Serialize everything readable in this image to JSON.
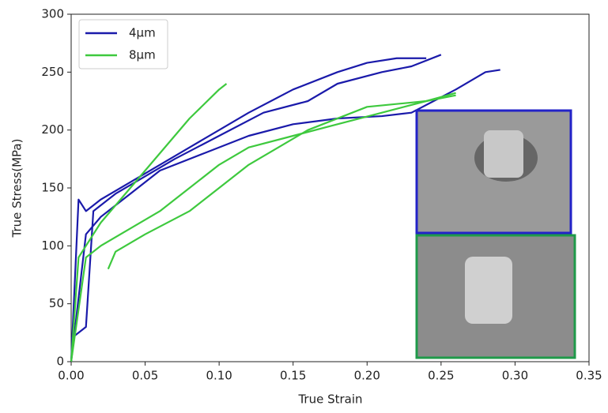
{
  "chart_data": {
    "type": "line",
    "xlabel": "True Strain",
    "ylabel": "True Stress(MPa)",
    "xlim": [
      0,
      0.35
    ],
    "ylim": [
      0,
      300
    ],
    "xticks": [
      {
        "value": 0,
        "label": "0.00"
      },
      0.05,
      {
        "value": 0.1,
        "label": "0.10"
      },
      0.15,
      {
        "value": 0.2,
        "label": "0.20"
      },
      0.25,
      {
        "value": 0.3,
        "label": "0.30"
      },
      0.35
    ],
    "yticks": [
      0,
      50,
      100,
      150,
      200,
      250,
      300
    ],
    "legend": "upper left",
    "series": [
      {
        "name": "4μm",
        "color": "#1a1aaa",
        "curves": [
          {
            "x": [
              0,
              0.005,
              0.01,
              0.02,
              0.04,
              0.06,
              0.08,
              0.1,
              0.12,
              0.15,
              0.18,
              0.2,
              0.22,
              0.24
            ],
            "values": [
              0,
              140,
              130,
              140,
              155,
              170,
              185,
              200,
              215,
              235,
              250,
              258,
              262,
              262
            ]
          },
          {
            "x": [
              0,
              0.01,
              0.015,
              0.03,
              0.05,
              0.07,
              0.1,
              0.13,
              0.16,
              0.18,
              0.21,
              0.23,
              0.25
            ],
            "values": [
              20,
              30,
              130,
              145,
              160,
              175,
              195,
              215,
              225,
              240,
              250,
              255,
              265
            ]
          },
          {
            "x": [
              0,
              0.01,
              0.02,
              0.04,
              0.06,
              0.09,
              0.12,
              0.15,
              0.18,
              0.21,
              0.23,
              0.26,
              0.28,
              0.29
            ],
            "values": [
              0,
              110,
              125,
              145,
              165,
              180,
              195,
              205,
              210,
              212,
              215,
              235,
              250,
              252
            ]
          }
        ]
      },
      {
        "name": "8μm",
        "color": "#3ec93e",
        "curves": [
          {
            "x": [
              0,
              0.005,
              0.01,
              0.02,
              0.04,
              0.06,
              0.08,
              0.1,
              0.105
            ],
            "values": [
              0,
              90,
              100,
              120,
              150,
              180,
              210,
              235,
              240
            ]
          },
          {
            "x": [
              0,
              0.01,
              0.02,
              0.04,
              0.06,
              0.08,
              0.1,
              0.12,
              0.15,
              0.18,
              0.21,
              0.24,
              0.26
            ],
            "values": [
              0,
              90,
              100,
              115,
              130,
              150,
              170,
              185,
              195,
              205,
              215,
              225,
              232
            ]
          },
          {
            "x": [
              0.025,
              0.03,
              0.05,
              0.08,
              0.1,
              0.12,
              0.14,
              0.16,
              0.2,
              0.24,
              0.26
            ],
            "values": [
              80,
              95,
              110,
              130,
              150,
              170,
              185,
              200,
              220,
              225,
              230
            ]
          }
        ]
      }
    ]
  }
}
